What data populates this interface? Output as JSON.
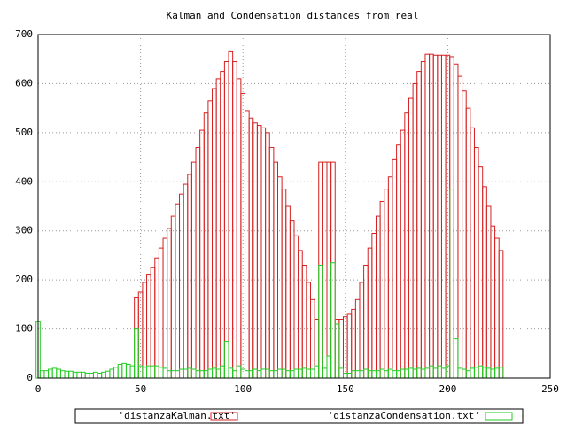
{
  "chart_data": {
    "type": "bar",
    "title": "Kalman and Condensation distances from real",
    "x": [
      0,
      2,
      4,
      6,
      8,
      10,
      12,
      14,
      16,
      18,
      20,
      22,
      24,
      26,
      28,
      30,
      32,
      34,
      36,
      38,
      40,
      42,
      44,
      46,
      48,
      50,
      52,
      54,
      56,
      58,
      60,
      62,
      64,
      66,
      68,
      70,
      72,
      74,
      76,
      78,
      80,
      82,
      84,
      86,
      88,
      90,
      92,
      94,
      96,
      98,
      100,
      102,
      104,
      106,
      108,
      110,
      112,
      114,
      116,
      118,
      120,
      122,
      124,
      126,
      128,
      130,
      132,
      134,
      136,
      138,
      140,
      142,
      144,
      146,
      148,
      150,
      152,
      154,
      156,
      158,
      160,
      162,
      164,
      166,
      168,
      170,
      172,
      174,
      176,
      178,
      180,
      182,
      184,
      186,
      188,
      190,
      192,
      194,
      196,
      198,
      200,
      202,
      204,
      206,
      208,
      210,
      212,
      214,
      216,
      218,
      220,
      222,
      224,
      226
    ],
    "series": [
      {
        "name": "'distanzaKalman.txt'",
        "color": "#d62020",
        "values": [
          null,
          null,
          null,
          null,
          null,
          null,
          null,
          null,
          null,
          null,
          null,
          null,
          null,
          null,
          null,
          null,
          null,
          null,
          null,
          null,
          null,
          null,
          null,
          null,
          165,
          175,
          195,
          210,
          225,
          245,
          265,
          285,
          305,
          330,
          355,
          375,
          395,
          415,
          440,
          470,
          505,
          540,
          565,
          590,
          610,
          625,
          645,
          665,
          645,
          610,
          580,
          545,
          530,
          520,
          515,
          510,
          500,
          470,
          440,
          410,
          385,
          350,
          320,
          290,
          260,
          230,
          195,
          160,
          120,
          440,
          440,
          440,
          440,
          120,
          120,
          125,
          130,
          140,
          160,
          195,
          230,
          265,
          295,
          330,
          360,
          385,
          410,
          445,
          475,
          505,
          540,
          570,
          600,
          625,
          645,
          660,
          660,
          658,
          658,
          658,
          658,
          655,
          640,
          615,
          585,
          550,
          510,
          470,
          430,
          390,
          350,
          310,
          285,
          260
        ]
      },
      {
        "name": "'distanzaCondensation.txt'",
        "color": "#22cc22",
        "values": [
          115,
          15,
          15,
          18,
          20,
          18,
          15,
          14,
          14,
          12,
          12,
          12,
          10,
          10,
          12,
          10,
          12,
          14,
          18,
          22,
          28,
          30,
          28,
          25,
          100,
          25,
          22,
          25,
          25,
          25,
          22,
          20,
          15,
          15,
          15,
          18,
          18,
          20,
          18,
          15,
          15,
          15,
          18,
          20,
          18,
          25,
          75,
          20,
          15,
          25,
          18,
          15,
          15,
          18,
          15,
          18,
          18,
          15,
          15,
          18,
          18,
          15,
          15,
          18,
          18,
          20,
          18,
          18,
          25,
          230,
          20,
          45,
          235,
          110,
          20,
          10,
          10,
          15,
          15,
          15,
          18,
          15,
          15,
          15,
          18,
          15,
          18,
          15,
          15,
          18,
          18,
          20,
          18,
          20,
          18,
          20,
          25,
          20,
          25,
          20,
          25,
          385,
          80,
          20,
          18,
          15,
          20,
          22,
          25,
          22,
          20,
          18,
          20,
          22
        ]
      }
    ],
    "xlim": [
      0,
      250
    ],
    "xticks": [
      0,
      50,
      100,
      150,
      200,
      250
    ],
    "ylim": [
      0,
      700
    ],
    "yticks": [
      0,
      100,
      200,
      300,
      400,
      500,
      600,
      700
    ],
    "box_width": 2,
    "grid": true,
    "legend": "bottom"
  }
}
